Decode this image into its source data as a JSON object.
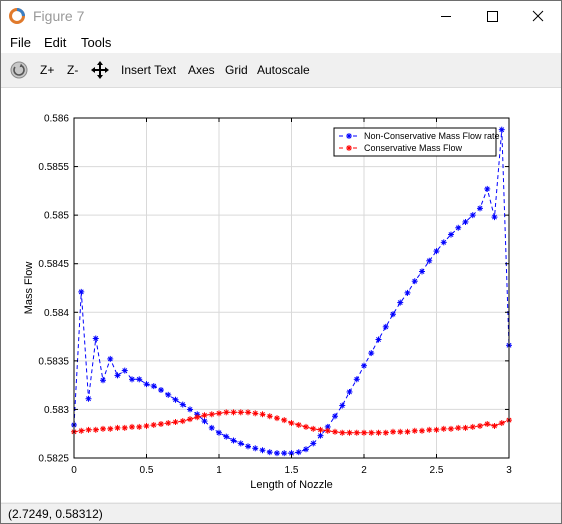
{
  "window": {
    "title": "Figure 7"
  },
  "menu": {
    "file": "File",
    "edit": "Edit",
    "tools": "Tools"
  },
  "toolbar": {
    "zoom_in": "Z+",
    "zoom_out": "Z-",
    "insert_text": "Insert Text",
    "axes": "Axes",
    "grid": "Grid",
    "autoscale": "Autoscale"
  },
  "status": {
    "coords": "(2.7249, 0.58312)"
  },
  "chart_data": {
    "type": "line",
    "title": "",
    "xlabel": "Length of Nozzle",
    "ylabel": "Mass Flow",
    "xlim": [
      0,
      3
    ],
    "ylim": [
      0.5825,
      0.586
    ],
    "xticks": [
      "0",
      "0.5",
      "1",
      "1.5",
      "2",
      "2.5",
      "3"
    ],
    "yticks": [
      "0.5825",
      "0.583",
      "0.5835",
      "0.584",
      "0.5845",
      "0.585",
      "0.5855",
      "0.586"
    ],
    "grid": true,
    "legend_position": "top-right",
    "series": [
      {
        "name": "Non-Conservative Mass Flow rate",
        "color": "#0000ff",
        "marker": "asterisk",
        "line": "dashed",
        "x": [
          0,
          0.05,
          0.1,
          0.15,
          0.2,
          0.25,
          0.3,
          0.35,
          0.4,
          0.45,
          0.5,
          0.55,
          0.6,
          0.65,
          0.7,
          0.75,
          0.8,
          0.85,
          0.9,
          0.95,
          1,
          1.05,
          1.1,
          1.15,
          1.2,
          1.25,
          1.3,
          1.35,
          1.4,
          1.45,
          1.5,
          1.55,
          1.6,
          1.65,
          1.7,
          1.75,
          1.8,
          1.85,
          1.9,
          1.95,
          2,
          2.05,
          2.1,
          2.15,
          2.2,
          2.25,
          2.3,
          2.35,
          2.4,
          2.45,
          2.5,
          2.55,
          2.6,
          2.65,
          2.7,
          2.75,
          2.8,
          2.85,
          2.9,
          2.95,
          3
        ],
        "y": [
          0.58284,
          0.58421,
          0.58311,
          0.58373,
          0.5833,
          0.58352,
          0.58335,
          0.5834,
          0.58331,
          0.58331,
          0.58326,
          0.58324,
          0.5832,
          0.58315,
          0.5831,
          0.58305,
          0.583,
          0.58295,
          0.58288,
          0.58281,
          0.58276,
          0.58272,
          0.58268,
          0.58265,
          0.58262,
          0.5826,
          0.58258,
          0.58256,
          0.58255,
          0.58255,
          0.58255,
          0.58256,
          0.58259,
          0.58265,
          0.58273,
          0.58282,
          0.58293,
          0.58304,
          0.58318,
          0.58331,
          0.58345,
          0.58358,
          0.58372,
          0.58385,
          0.58398,
          0.5841,
          0.5842,
          0.58432,
          0.58442,
          0.58453,
          0.58463,
          0.58472,
          0.5848,
          0.58487,
          0.58493,
          0.585,
          0.58507,
          0.58527,
          0.58498,
          0.58588,
          0.58366
        ]
      },
      {
        "name": "Conservative Mass Flow",
        "color": "#ff0000",
        "marker": "asterisk",
        "line": "dashed",
        "x": [
          0,
          0.05,
          0.1,
          0.15,
          0.2,
          0.25,
          0.3,
          0.35,
          0.4,
          0.45,
          0.5,
          0.55,
          0.6,
          0.65,
          0.7,
          0.75,
          0.8,
          0.85,
          0.9,
          0.95,
          1,
          1.05,
          1.1,
          1.15,
          1.2,
          1.25,
          1.3,
          1.35,
          1.4,
          1.45,
          1.5,
          1.55,
          1.6,
          1.65,
          1.7,
          1.75,
          1.8,
          1.85,
          1.9,
          1.95,
          2,
          2.05,
          2.1,
          2.15,
          2.2,
          2.25,
          2.3,
          2.35,
          2.4,
          2.45,
          2.5,
          2.55,
          2.6,
          2.65,
          2.7,
          2.75,
          2.8,
          2.85,
          2.9,
          2.95,
          3
        ],
        "y": [
          0.58277,
          0.58278,
          0.58279,
          0.58279,
          0.5828,
          0.5828,
          0.58281,
          0.58281,
          0.58282,
          0.58282,
          0.58283,
          0.58284,
          0.58285,
          0.58286,
          0.58287,
          0.58288,
          0.5829,
          0.58292,
          0.58294,
          0.58295,
          0.58296,
          0.58297,
          0.58297,
          0.58297,
          0.58297,
          0.58296,
          0.58295,
          0.58293,
          0.58291,
          0.58289,
          0.58286,
          0.58284,
          0.58282,
          0.5828,
          0.58279,
          0.58278,
          0.58277,
          0.58276,
          0.58276,
          0.58276,
          0.58276,
          0.58276,
          0.58276,
          0.58276,
          0.58277,
          0.58277,
          0.58277,
          0.58278,
          0.58278,
          0.58279,
          0.58279,
          0.5828,
          0.5828,
          0.58281,
          0.58281,
          0.58282,
          0.58283,
          0.58285,
          0.58283,
          0.58286,
          0.58289
        ]
      }
    ]
  }
}
